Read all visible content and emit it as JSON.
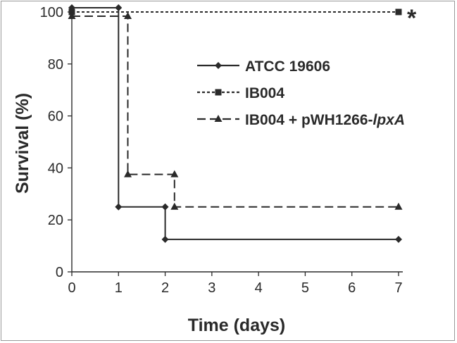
{
  "chart_data": {
    "type": "line",
    "subtype": "step",
    "xlabel": "Time (days)",
    "ylabel": "Survival (%)",
    "xlim": [
      0,
      7
    ],
    "ylim": [
      0,
      100
    ],
    "x_ticks": [
      "0",
      "1",
      "2",
      "3",
      "4",
      "5",
      "6",
      "7"
    ],
    "y_ticks": [
      "0",
      "20",
      "40",
      "60",
      "80",
      "100"
    ],
    "legend_position": "right-middle",
    "grid": false,
    "annotation": "*",
    "series": [
      {
        "name": "ATCC 19606",
        "name_suffix": "",
        "marker": "diamond",
        "line_style": "solid",
        "color": "#2a2a2a",
        "points": [
          {
            "x": 0,
            "y": 100
          },
          {
            "x": 1,
            "y": 100
          },
          {
            "x": 1,
            "y": 25
          },
          {
            "x": 2,
            "y": 25
          },
          {
            "x": 2,
            "y": 12.5
          },
          {
            "x": 7,
            "y": 12.5
          }
        ]
      },
      {
        "name": "IB004",
        "name_suffix": "",
        "marker": "square",
        "line_style": "dotted",
        "color": "#2a2a2a",
        "points": [
          {
            "x": 0,
            "y": 100
          },
          {
            "x": 7,
            "y": 100
          }
        ]
      },
      {
        "name": "IB004 + pWH1266-",
        "name_suffix": "lpxA",
        "marker": "triangle",
        "line_style": "dashed",
        "color": "#2a2a2a",
        "points": [
          {
            "x": 0,
            "y": 100
          },
          {
            "x": 1.2,
            "y": 100
          },
          {
            "x": 1.2,
            "y": 37.5
          },
          {
            "x": 2.2,
            "y": 37.5
          },
          {
            "x": 2.2,
            "y": 25
          },
          {
            "x": 7,
            "y": 25
          }
        ]
      }
    ]
  }
}
